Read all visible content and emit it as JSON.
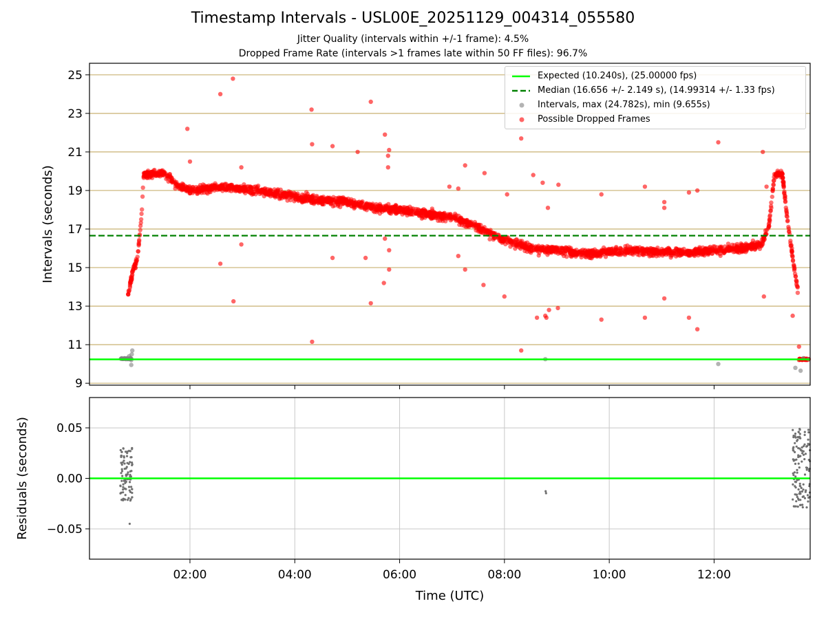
{
  "title": "Timestamp Intervals - USL00E_20251129_004314_055580",
  "subtitle_lines": [
    "Jitter Quality (intervals within +/-1 frame): 4.5%",
    "Dropped Frame Rate (intervals >1 frames late within 50 FF files): 96.7%"
  ],
  "colors": {
    "expected": "#00ff00",
    "median": "#008000",
    "intervals": "#808080",
    "dropped": "#ff0000",
    "grid_top": "#c8b070",
    "grid_bottom": "#c8c8c8"
  },
  "legend": [
    {
      "label": "Expected (10.240s), (25.00000 fps)",
      "kind": "line-solid",
      "color": "#00ff00"
    },
    {
      "label": "Median (16.656 +/- 2.149 s), (14.99314 +/- 1.33 fps)",
      "kind": "line-dashed",
      "color": "#008000"
    },
    {
      "label": "Intervals, max (24.782s), min (9.655s)",
      "kind": "marker",
      "color": "#808080"
    },
    {
      "label": "Possible Dropped Frames",
      "kind": "marker",
      "color": "#ff0000"
    }
  ],
  "chart_data": [
    {
      "type": "scatter",
      "ylabel": "Intervals (seconds)",
      "xlim_hours": [
        0.083,
        13.833
      ],
      "ylim": [
        8.9,
        25.6
      ],
      "y_ticks": [
        9,
        11,
        13,
        15,
        17,
        19,
        21,
        23,
        25
      ],
      "expected": 10.24,
      "median": 16.656,
      "trend": {
        "x_hours": [
          0.82,
          0.87,
          0.93,
          1.0,
          1.08,
          1.12,
          1.3,
          1.5,
          1.75,
          2.0,
          2.5,
          3.0,
          3.5,
          4.0,
          4.5,
          5.0,
          5.5,
          6.0,
          6.5,
          7.0,
          7.5,
          8.0,
          8.5,
          9.0,
          9.5,
          10.0,
          10.5,
          11.0,
          11.5,
          12.0,
          12.5,
          12.9,
          13.05,
          13.15,
          13.3,
          13.4,
          13.5,
          13.6
        ],
        "y_values": [
          13.6,
          14.3,
          15.0,
          15.5,
          17.8,
          19.8,
          19.9,
          19.9,
          19.3,
          19.0,
          19.2,
          19.1,
          18.9,
          18.7,
          18.5,
          18.4,
          18.1,
          18.0,
          17.8,
          17.6,
          17.1,
          16.4,
          16.0,
          15.9,
          15.7,
          15.8,
          15.9,
          15.8,
          15.8,
          15.9,
          16.0,
          16.2,
          17.2,
          19.8,
          19.9,
          17.5,
          15.5,
          13.8
        ]
      },
      "dropped_outliers": [
        [
          1.95,
          22.2
        ],
        [
          2.0,
          20.5
        ],
        [
          2.58,
          24.0
        ],
        [
          2.82,
          24.8
        ],
        [
          2.98,
          20.2
        ],
        [
          2.58,
          15.2
        ],
        [
          2.83,
          13.25
        ],
        [
          2.98,
          16.2
        ],
        [
          4.32,
          23.2
        ],
        [
          4.33,
          21.4
        ],
        [
          4.72,
          21.3
        ],
        [
          4.72,
          15.5
        ],
        [
          4.33,
          11.15
        ],
        [
          5.2,
          21.0
        ],
        [
          5.45,
          23.6
        ],
        [
          5.72,
          21.9
        ],
        [
          5.8,
          21.1
        ],
        [
          5.78,
          20.8
        ],
        [
          5.78,
          20.2
        ],
        [
          5.35,
          15.5
        ],
        [
          5.45,
          13.15
        ],
        [
          5.7,
          14.2
        ],
        [
          5.8,
          15.9
        ],
        [
          5.8,
          14.9
        ],
        [
          5.72,
          16.5
        ],
        [
          6.95,
          19.2
        ],
        [
          7.25,
          20.3
        ],
        [
          7.12,
          19.1
        ],
        [
          7.62,
          19.9
        ],
        [
          7.12,
          15.6
        ],
        [
          7.25,
          14.9
        ],
        [
          7.6,
          14.1
        ],
        [
          8.05,
          18.8
        ],
        [
          8.0,
          13.5
        ],
        [
          8.55,
          19.8
        ],
        [
          8.73,
          19.4
        ],
        [
          8.83,
          18.1
        ],
        [
          9.03,
          19.3
        ],
        [
          8.32,
          21.7
        ],
        [
          8.32,
          10.7
        ],
        [
          8.62,
          12.4
        ],
        [
          8.78,
          12.5
        ],
        [
          8.8,
          12.4
        ],
        [
          8.85,
          12.8
        ],
        [
          9.02,
          12.9
        ],
        [
          9.85,
          18.8
        ],
        [
          9.85,
          12.3
        ],
        [
          10.68,
          19.2
        ],
        [
          10.68,
          12.4
        ],
        [
          11.05,
          18.4
        ],
        [
          11.05,
          18.1
        ],
        [
          11.05,
          13.4
        ],
        [
          11.52,
          18.9
        ],
        [
          11.68,
          19.0
        ],
        [
          11.52,
          12.4
        ],
        [
          11.68,
          11.8
        ],
        [
          12.08,
          21.5
        ],
        [
          12.93,
          21.0
        ],
        [
          13.0,
          19.2
        ],
        [
          12.95,
          13.5
        ],
        [
          13.5,
          12.5
        ],
        [
          13.62,
          10.9
        ]
      ],
      "gray_points": [
        [
          0.7,
          10.3
        ],
        [
          0.75,
          10.3
        ],
        [
          0.78,
          10.25
        ],
        [
          0.8,
          10.3
        ],
        [
          0.82,
          10.25
        ],
        [
          0.84,
          10.4
        ],
        [
          0.86,
          10.3
        ],
        [
          0.88,
          10.2
        ],
        [
          0.89,
          10.5
        ],
        [
          0.9,
          10.7
        ],
        [
          0.88,
          9.95
        ],
        [
          8.78,
          10.25
        ],
        [
          12.08,
          10.0
        ],
        [
          13.55,
          9.8
        ],
        [
          13.65,
          9.65
        ],
        [
          13.7,
          10.3
        ],
        [
          13.8,
          10.25
        ]
      ]
    },
    {
      "type": "scatter",
      "xlabel": "Time (UTC)",
      "ylabel": "Residuals (seconds)",
      "xlim_hours": [
        0.083,
        13.833
      ],
      "ylim": [
        -0.08,
        0.08
      ],
      "y_ticks": [
        0.05,
        0.0,
        -0.05
      ],
      "y_tick_labels": [
        "0.05",
        "0.00",
        "−0.05"
      ],
      "x_ticks_hours": [
        2,
        4,
        6,
        8,
        10,
        12
      ],
      "x_tick_labels": [
        "02:00",
        "04:00",
        "06:00",
        "08:00",
        "10:00",
        "12:00"
      ],
      "residual_groups": [
        {
          "x_hours": [
            0.67,
            0.9
          ],
          "y_range": [
            -0.022,
            0.03
          ],
          "count": 90,
          "outlier": [
            0.85,
            -0.045
          ]
        },
        {
          "x_hours": [
            8.78,
            8.8
          ],
          "y_range": [
            -0.016,
            -0.009
          ],
          "count": 2
        },
        {
          "x_hours": [
            13.5,
            13.83
          ],
          "y_range": [
            -0.03,
            0.05
          ],
          "count": 130
        }
      ]
    }
  ]
}
